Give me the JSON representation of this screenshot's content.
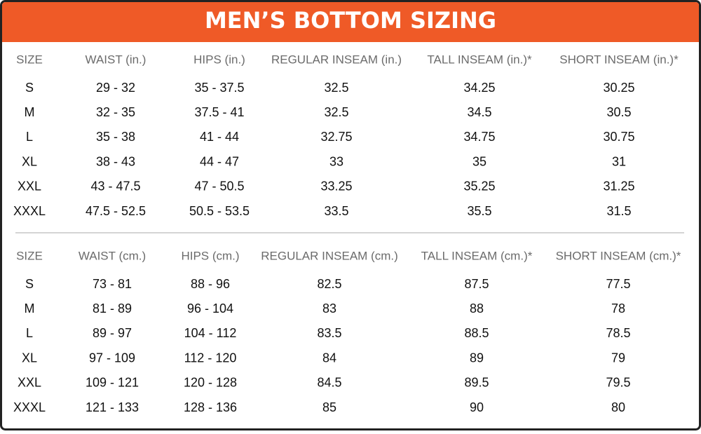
{
  "header": {
    "title": "MEN’S BOTTOM SIZING"
  },
  "tables": [
    {
      "columns": [
        "SIZE",
        "WAIST (in.)",
        "HIPS (in.)",
        "REGULAR INSEAM (in.)",
        "TALL INSEAM (in.)*",
        "SHORT INSEAM (in.)*"
      ],
      "rows": [
        [
          "S",
          "29 - 32",
          "35 - 37.5",
          "32.5",
          "34.25",
          "30.25"
        ],
        [
          "M",
          "32 - 35",
          "37.5 - 41",
          "32.5",
          "34.5",
          "30.5"
        ],
        [
          "L",
          "35 - 38",
          "41 - 44",
          "32.75",
          "34.75",
          "30.75"
        ],
        [
          "XL",
          "38 - 43",
          "44 - 47",
          "33",
          "35",
          "31"
        ],
        [
          "XXL",
          "43 - 47.5",
          "47 - 50.5",
          "33.25",
          "35.25",
          "31.25"
        ],
        [
          "XXXL",
          "47.5 - 52.5",
          "50.5 - 53.5",
          "33.5",
          "35.5",
          "31.5"
        ]
      ]
    },
    {
      "columns": [
        "SIZE",
        "WAIST (cm.)",
        "HIPS (cm.)",
        "REGULAR INSEAM (cm.)",
        "TALL INSEAM (cm.)*",
        "SHORT INSEAM (cm.)*"
      ],
      "rows": [
        [
          "S",
          "73 - 81",
          "88 - 96",
          "82.5",
          "87.5",
          "77.5"
        ],
        [
          "M",
          "81 - 89",
          "96 - 104",
          "83",
          "88",
          "78"
        ],
        [
          "L",
          "89 - 97",
          "104 - 112",
          "83.5",
          "88.5",
          "78.5"
        ],
        [
          "XL",
          "97 - 109",
          "112 - 120",
          "84",
          "89",
          "79"
        ],
        [
          "XXL",
          "109 - 121",
          "120 - 128",
          "84.5",
          "89.5",
          "79.5"
        ],
        [
          "XXXL",
          "121 - 133",
          "128 - 136",
          "85",
          "90",
          "80"
        ]
      ]
    }
  ]
}
